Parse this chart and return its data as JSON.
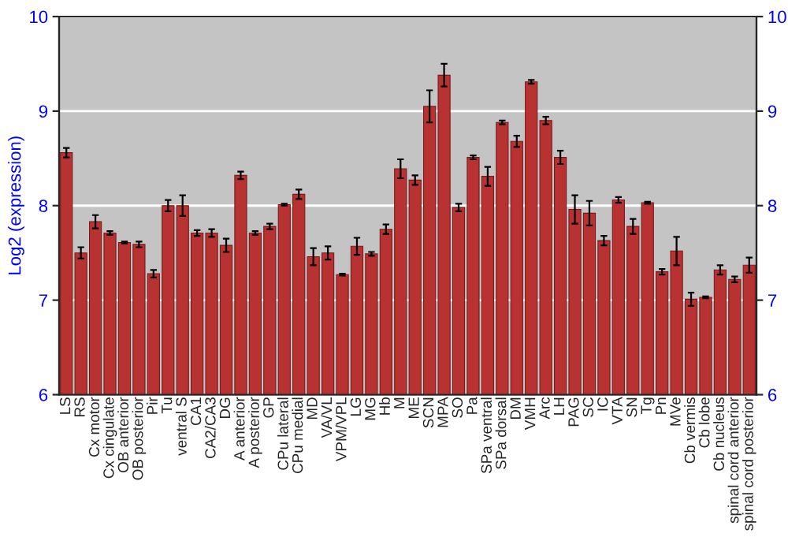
{
  "chart_data": {
    "type": "bar",
    "ylabel": "Log2 (expression)",
    "categories": [
      "LS",
      "RS",
      "Cx motor",
      "Cx cingulate",
      "OB anterior",
      "OB posterior",
      "Pir",
      "Tu",
      "ventral S",
      "CA1",
      "CA2/CA3",
      "DG",
      "A anterior",
      "A posterior",
      "GP",
      "CPu lateral",
      "CPu medial",
      "MD",
      "VA/VL",
      "VPM/VPL",
      "LG",
      "MG",
      "Hb",
      "M",
      "ME",
      "SCN",
      "MPA",
      "SO",
      "Pa",
      "SPa ventral",
      "SPa dorsal",
      "DM",
      "VMH",
      "Arc",
      "LH",
      "PAG",
      "SC",
      "IC",
      "VTA",
      "SN",
      "Tg",
      "Pn",
      "MVe",
      "Cb vermis",
      "Cb lobe",
      "Cb nucleus",
      "spinal cord anterior",
      "spinal cord posterior"
    ],
    "values": [
      8.56,
      7.5,
      7.83,
      7.71,
      7.61,
      7.59,
      7.28,
      8.0,
      8.0,
      7.71,
      7.71,
      7.58,
      8.32,
      7.71,
      7.78,
      8.01,
      8.12,
      7.46,
      7.5,
      7.27,
      7.57,
      7.49,
      7.75,
      8.39,
      8.27,
      9.05,
      9.38,
      7.98,
      8.51,
      8.31,
      8.88,
      8.68,
      9.31,
      8.9,
      8.51,
      7.96,
      7.92,
      7.63,
      8.06,
      7.78,
      8.03,
      7.3,
      7.52,
      7.01,
      7.03,
      7.32,
      7.22,
      7.37
    ],
    "errors": [
      0.05,
      0.06,
      0.07,
      0.02,
      0.01,
      0.03,
      0.04,
      0.06,
      0.11,
      0.03,
      0.04,
      0.07,
      0.04,
      0.02,
      0.03,
      0.01,
      0.05,
      0.09,
      0.07,
      0.01,
      0.09,
      0.02,
      0.05,
      0.1,
      0.05,
      0.17,
      0.12,
      0.04,
      0.02,
      0.1,
      0.02,
      0.06,
      0.02,
      0.04,
      0.07,
      0.15,
      0.13,
      0.05,
      0.03,
      0.08,
      0.01,
      0.03,
      0.15,
      0.07,
      0.01,
      0.05,
      0.03,
      0.08
    ],
    "color": "#b83232",
    "ylim": [
      6,
      10
    ],
    "yticks": [
      6,
      7,
      8,
      9,
      10
    ],
    "y2lim": [
      6,
      10
    ],
    "y2ticks": [
      6,
      7,
      8,
      9,
      10
    ],
    "grid": "y",
    "legend": false
  }
}
